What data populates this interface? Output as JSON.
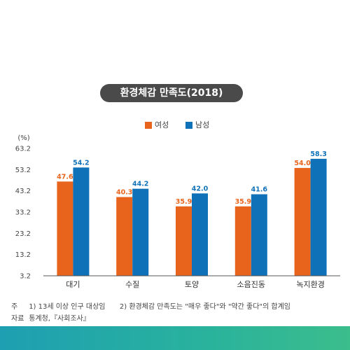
{
  "chart_data": {
    "type": "bar",
    "title": "환경체감 만족도(2018)",
    "ylabel": "(%)",
    "categories": [
      "대기",
      "수질",
      "토양",
      "소음진동",
      "녹지환경"
    ],
    "series": [
      {
        "name": "여성",
        "color": "#e8641c",
        "values": [
          47.6,
          40.3,
          35.9,
          35.9,
          54.0
        ]
      },
      {
        "name": "남성",
        "color": "#0f72b8",
        "values": [
          54.2,
          44.2,
          42.0,
          41.6,
          58.3
        ]
      }
    ],
    "value_labels": [
      [
        "47.6",
        "40.3",
        "35.9",
        "35.9",
        "54.0"
      ],
      [
        "54.2",
        "44.2",
        "42.0",
        "41.6",
        "58.3"
      ]
    ],
    "yticks": [
      "3.2",
      "13.2",
      "23.2",
      "33.2",
      "43.2",
      "53.2",
      "63.2"
    ],
    "ylim": [
      3.2,
      63.2
    ],
    "legend_position": "top-center",
    "grid": false
  },
  "notes": {
    "note_key": "주",
    "note_1": "1) 13세 이상 인구 대상임",
    "note_2": "2) 환경체감 만족도는 \"매우 좋다\"와 \"약간 좋다\"의 합계임",
    "source_key": "자료",
    "source": "통계청,『사회조사』"
  }
}
